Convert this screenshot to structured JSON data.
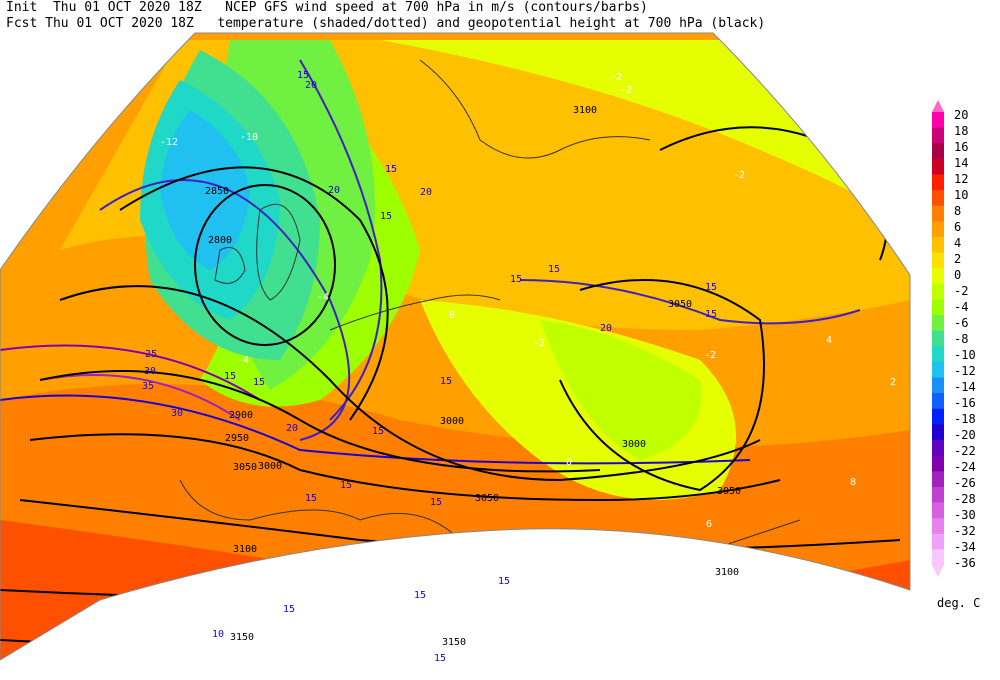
{
  "header": {
    "line1_left": "Init  Thu 01 OCT 2020 18Z",
    "line1_right": "NCEP GFS wind speed at 700 hPa in m/s (contours/barbs)",
    "line2_left": "Fcst Thu 01 OCT 2020 18Z",
    "line2_right": "temperature (shaded/dotted) and geopotential height at 700 hPa (black)"
  },
  "colorbar": {
    "unit": "deg. C",
    "levels": [
      "20",
      "18",
      "16",
      "14",
      "12",
      "10",
      "8",
      "6",
      "4",
      "2",
      "0",
      "-2",
      "-4",
      "-6",
      "-8",
      "-10",
      "-12",
      "-14",
      "-16",
      "-18",
      "-20",
      "-22",
      "-24",
      "-26",
      "-28",
      "-30",
      "-32",
      "-34",
      "-36"
    ],
    "colors": [
      "#ff00aa",
      "#cc0077",
      "#aa0044",
      "#cc0022",
      "#ff2000",
      "#ff5000",
      "#ff8000",
      "#ffa000",
      "#ffc000",
      "#ffe000",
      "#e6ff00",
      "#c0ff00",
      "#9eff00",
      "#70f040",
      "#40e090",
      "#20d8c8",
      "#20c0f0",
      "#1890f8",
      "#1060ff",
      "#0020ff",
      "#2000d0",
      "#6000c0",
      "#8000b0",
      "#a020c0",
      "#c040d0",
      "#d860e0",
      "#e880f0",
      "#f0a0f8",
      "#f8c8fc"
    ]
  },
  "map_labels": {
    "geopotential": [
      "2850",
      "2800",
      "3100",
      "3050",
      "2900",
      "2950",
      "3000",
      "3050",
      "3100",
      "3000",
      "3050",
      "3000",
      "3150",
      "3150",
      "3100",
      "3050"
    ],
    "wind": [
      "15",
      "20",
      "15",
      "20",
      "15",
      "20",
      "15",
      "15",
      "15",
      "20",
      "15",
      "25",
      "30",
      "35",
      "30",
      "15",
      "15",
      "15",
      "15",
      "15",
      "15",
      "15",
      "20",
      "15",
      "15",
      "10",
      "15",
      "15"
    ],
    "temperature": [
      "-10",
      "-12",
      "-2",
      "-2",
      "-2",
      "-4",
      "-2",
      "0",
      "-2",
      "0",
      "2",
      "4",
      "6",
      "8",
      "-4"
    ]
  }
}
